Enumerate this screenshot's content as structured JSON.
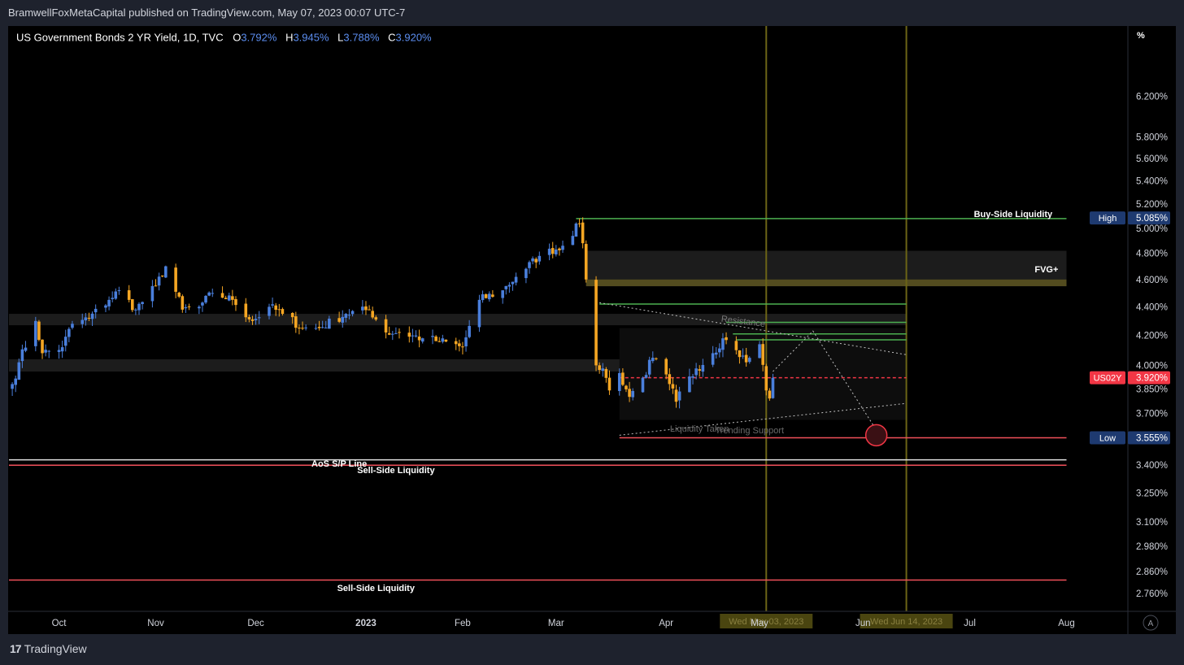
{
  "header": {
    "published_text": "BramwellFoxMetaCapital published on TradingView.com, May 07, 2023 00:07 UTC-7"
  },
  "legend": {
    "symbol_text": "US Government Bonds 2 YR Yield, 1D, TVC",
    "o_label": "O",
    "o_value": "3.792%",
    "h_label": "H",
    "h_value": "3.945%",
    "l_label": "L",
    "l_value": "3.788%",
    "c_label": "C",
    "c_value": "3.920%"
  },
  "footer": {
    "brand": "TradingView",
    "auto_button": "A"
  },
  "colors": {
    "up": "#4a7fdc",
    "down": "#f5a623",
    "liquidity_line": "#f0505a",
    "green_line": "#4caf50",
    "vertical_line": "#6b6416",
    "background": "#000000"
  },
  "chart_data": {
    "type": "candlestick",
    "title": "US Government Bonds 2 YR Yield, 1D, TVC",
    "ylabel": "%",
    "y_scale": "log",
    "ylim": [
      2.68,
      6.95
    ],
    "x_range": [
      "2023-09-18",
      "2024-08-05"
    ],
    "x_ticks": [
      {
        "label": "Oct",
        "date": "2022-10-03"
      },
      {
        "label": "Nov",
        "date": "2022-11-01"
      },
      {
        "label": "Dec",
        "date": "2022-12-01"
      },
      {
        "label": "2023",
        "date": "2023-01-03",
        "bold": true
      },
      {
        "label": "Feb",
        "date": "2023-02-01"
      },
      {
        "label": "Mar",
        "date": "2023-03-01"
      },
      {
        "label": "Apr",
        "date": "2023-04-03"
      },
      {
        "label": "May",
        "date": "2023-05-01"
      },
      {
        "label": "Jun",
        "date": "2023-06-01"
      },
      {
        "label": "Jul",
        "date": "2023-07-03"
      },
      {
        "label": "Aug",
        "date": "2023-08-01"
      }
    ],
    "y_ticks": [
      {
        "value": 6.2,
        "label": "6.200%"
      },
      {
        "value": 5.8,
        "label": "5.800%"
      },
      {
        "value": 5.6,
        "label": "5.600%"
      },
      {
        "value": 5.4,
        "label": "5.400%"
      },
      {
        "value": 5.2,
        "label": "5.200%"
      },
      {
        "value": 5.0,
        "label": "5.000%"
      },
      {
        "value": 4.8,
        "label": "4.800%"
      },
      {
        "value": 4.6,
        "label": "4.600%"
      },
      {
        "value": 4.4,
        "label": "4.400%"
      },
      {
        "value": 4.2,
        "label": "4.200%"
      },
      {
        "value": 4.0,
        "label": "4.000%"
      },
      {
        "value": 3.85,
        "label": "3.850%"
      },
      {
        "value": 3.7,
        "label": "3.700%"
      },
      {
        "value": 3.4,
        "label": "3.400%"
      },
      {
        "value": 3.25,
        "label": "3.250%"
      },
      {
        "value": 3.1,
        "label": "3.100%"
      },
      {
        "value": 2.98,
        "label": "2.980%"
      },
      {
        "value": 2.86,
        "label": "2.860%"
      },
      {
        "value": 2.76,
        "label": "2.760%"
      }
    ],
    "candle_anchors": [
      [
        "2022-09-19",
        3.88
      ],
      [
        "2022-09-21",
        4.02
      ],
      [
        "2022-09-26",
        4.3
      ],
      [
        "2022-09-28",
        4.08
      ],
      [
        "2022-10-04",
        4.12
      ],
      [
        "2022-10-07",
        4.28
      ],
      [
        "2022-10-12",
        4.32
      ],
      [
        "2022-10-18",
        4.45
      ],
      [
        "2022-10-21",
        4.52
      ],
      [
        "2022-10-26",
        4.38
      ],
      [
        "2022-11-01",
        4.55
      ],
      [
        "2022-11-04",
        4.7
      ],
      [
        "2022-11-09",
        4.38
      ],
      [
        "2022-11-14",
        4.4
      ],
      [
        "2022-11-18",
        4.5
      ],
      [
        "2022-11-24",
        4.45
      ],
      [
        "2022-11-30",
        4.3
      ],
      [
        "2022-12-05",
        4.4
      ],
      [
        "2022-12-09",
        4.35
      ],
      [
        "2022-12-15",
        4.25
      ],
      [
        "2022-12-20",
        4.25
      ],
      [
        "2022-12-28",
        4.35
      ],
      [
        "2023-01-04",
        4.38
      ],
      [
        "2023-01-09",
        4.22
      ],
      [
        "2023-01-13",
        4.22
      ],
      [
        "2023-01-20",
        4.18
      ],
      [
        "2023-01-25",
        4.16
      ],
      [
        "2023-02-01",
        4.12
      ],
      [
        "2023-02-06",
        4.45
      ],
      [
        "2023-02-13",
        4.52
      ],
      [
        "2023-02-17",
        4.62
      ],
      [
        "2023-02-24",
        4.78
      ],
      [
        "2023-03-03",
        4.86
      ],
      [
        "2023-03-08",
        5.04
      ],
      [
        "2023-03-09",
        4.88
      ],
      [
        "2023-03-10",
        4.6
      ],
      [
        "2023-03-13",
        4.0
      ],
      [
        "2023-03-15",
        3.98
      ],
      [
        "2023-03-17",
        3.84
      ],
      [
        "2023-03-20",
        3.95
      ],
      [
        "2023-03-23",
        3.8
      ],
      [
        "2023-03-27",
        3.92
      ],
      [
        "2023-03-30",
        4.05
      ],
      [
        "2023-04-04",
        3.88
      ],
      [
        "2023-04-06",
        3.77
      ],
      [
        "2023-04-12",
        3.98
      ],
      [
        "2023-04-17",
        4.08
      ],
      [
        "2023-04-20",
        4.18
      ],
      [
        "2023-04-24",
        4.1
      ],
      [
        "2023-04-27",
        4.02
      ],
      [
        "2023-05-01",
        4.14
      ],
      [
        "2023-05-03",
        3.84
      ],
      [
        "2023-05-04",
        3.79
      ],
      [
        "2023-05-05",
        3.92
      ]
    ],
    "last_candle": {
      "date": "2023-05-05",
      "open": 3.792,
      "high": 3.945,
      "low": 3.788,
      "close": 3.92
    },
    "price_tags": [
      {
        "label": "High",
        "value_text": "5.085%",
        "value": 5.085,
        "color": "#1e3a70"
      },
      {
        "label": "US02Y",
        "value_text": "3.920%",
        "value": 3.92,
        "color": "#f23645"
      },
      {
        "label": "Low",
        "value_text": "3.555%",
        "value": 3.555,
        "color": "#1e3a70"
      }
    ],
    "zones": [
      {
        "name": "FVG+",
        "from": "2023-03-10",
        "to": "2023-08-01",
        "low": 4.55,
        "high": 4.82
      },
      {
        "name": "fvg-mid",
        "from": "2023-03-10",
        "to": "2023-08-01",
        "low": 4.55,
        "high": 4.6
      },
      {
        "name": "range-upper",
        "from": "2022-09-18",
        "to": "2023-06-14",
        "low": 4.27,
        "high": 4.35
      },
      {
        "name": "range-lower",
        "from": "2022-09-18",
        "to": "2023-06-14",
        "low": 3.96,
        "high": 4.04
      },
      {
        "name": "consolidation",
        "from": "2023-03-20",
        "to": "2023-06-14",
        "low": 3.66,
        "high": 4.25
      }
    ],
    "levels": [
      {
        "name": "Buy-Side Liquidity",
        "value": 5.08,
        "from": "2023-03-07",
        "to": "2023-08-01",
        "color": "#4caf50"
      },
      {
        "name": "resistance-1",
        "value": 4.42,
        "from": "2023-03-14",
        "to": "2023-06-14",
        "color": "#4caf50"
      },
      {
        "name": "resistance-2",
        "value": 4.29,
        "from": "2023-04-21",
        "to": "2023-06-14",
        "color": "#4caf50"
      },
      {
        "name": "resistance-3",
        "value": 4.21,
        "from": "2023-04-23",
        "to": "2023-06-14",
        "color": "#4caf50"
      },
      {
        "name": "resistance-4",
        "value": 4.17,
        "from": "2023-04-24",
        "to": "2023-06-14",
        "color": "#4caf50"
      },
      {
        "name": "Low line",
        "value": 3.555,
        "from": "2023-03-20",
        "to": "2023-08-01",
        "color": "#f0505a"
      },
      {
        "name": "AoS S/P Line",
        "value": 3.43,
        "from": "2022-09-18",
        "to": "2023-08-01",
        "color": "#e0e0e0"
      },
      {
        "name": "Sell-Side Liquidity",
        "value": 3.4,
        "from": "2022-09-18",
        "to": "2023-08-01",
        "color": "#f0505a"
      },
      {
        "name": "Sell-Side Liquidity (lower)",
        "value": 2.82,
        "from": "2022-09-18",
        "to": "2023-08-01",
        "color": "#f0505a"
      }
    ],
    "vertical_markers": [
      {
        "date": "2023-05-03",
        "label": "Wed May 03, 2023"
      },
      {
        "date": "2023-06-14",
        "label": "Wed Jun 14, 2023"
      }
    ],
    "annotations": [
      {
        "text": "Buy-Side Liquidity",
        "date": "2023-07-16",
        "value": 5.12,
        "bold": true,
        "color": "#ffffff"
      },
      {
        "text": "FVG+",
        "date": "2023-07-26",
        "value": 4.68,
        "bold": true,
        "color": "#ffffff"
      },
      {
        "text": "Resistance",
        "date": "2023-04-26",
        "value": 4.3,
        "bold": false,
        "color": "#7a7a7a"
      },
      {
        "text": "Liquidity Taken",
        "date": "2023-04-13",
        "value": 3.61,
        "bold": false,
        "color": "#6a6a6a"
      },
      {
        "text": "Trending Support",
        "date": "2023-04-28",
        "value": 3.6,
        "bold": false,
        "color": "#6a6a6a"
      },
      {
        "text": "AoS S/P Line",
        "date": "2022-12-26",
        "value": 3.41,
        "bold": true,
        "color": "#ffffff"
      },
      {
        "text": "Sell-Side Liquidity",
        "date": "2023-01-12",
        "value": 3.375,
        "bold": true,
        "color": "#ffffff"
      },
      {
        "text": "Sell-Side Liquidity",
        "date": "2023-01-06",
        "value": 2.785,
        "bold": true,
        "color": "#ffffff"
      }
    ],
    "trendlines": [
      {
        "name": "resistance-trend",
        "points": [
          [
            "2023-03-14",
            4.43
          ],
          [
            "2023-06-14",
            4.07
          ]
        ]
      },
      {
        "name": "support-trend",
        "points": [
          [
            "2023-03-20",
            3.57
          ],
          [
            "2023-06-14",
            3.76
          ]
        ]
      },
      {
        "name": "projection",
        "points": [
          [
            "2023-05-05",
            3.96
          ],
          [
            "2023-05-17",
            4.23
          ],
          [
            "2023-06-06",
            3.57
          ]
        ]
      }
    ],
    "target_circle": {
      "date": "2023-06-05",
      "value": 3.57
    }
  }
}
